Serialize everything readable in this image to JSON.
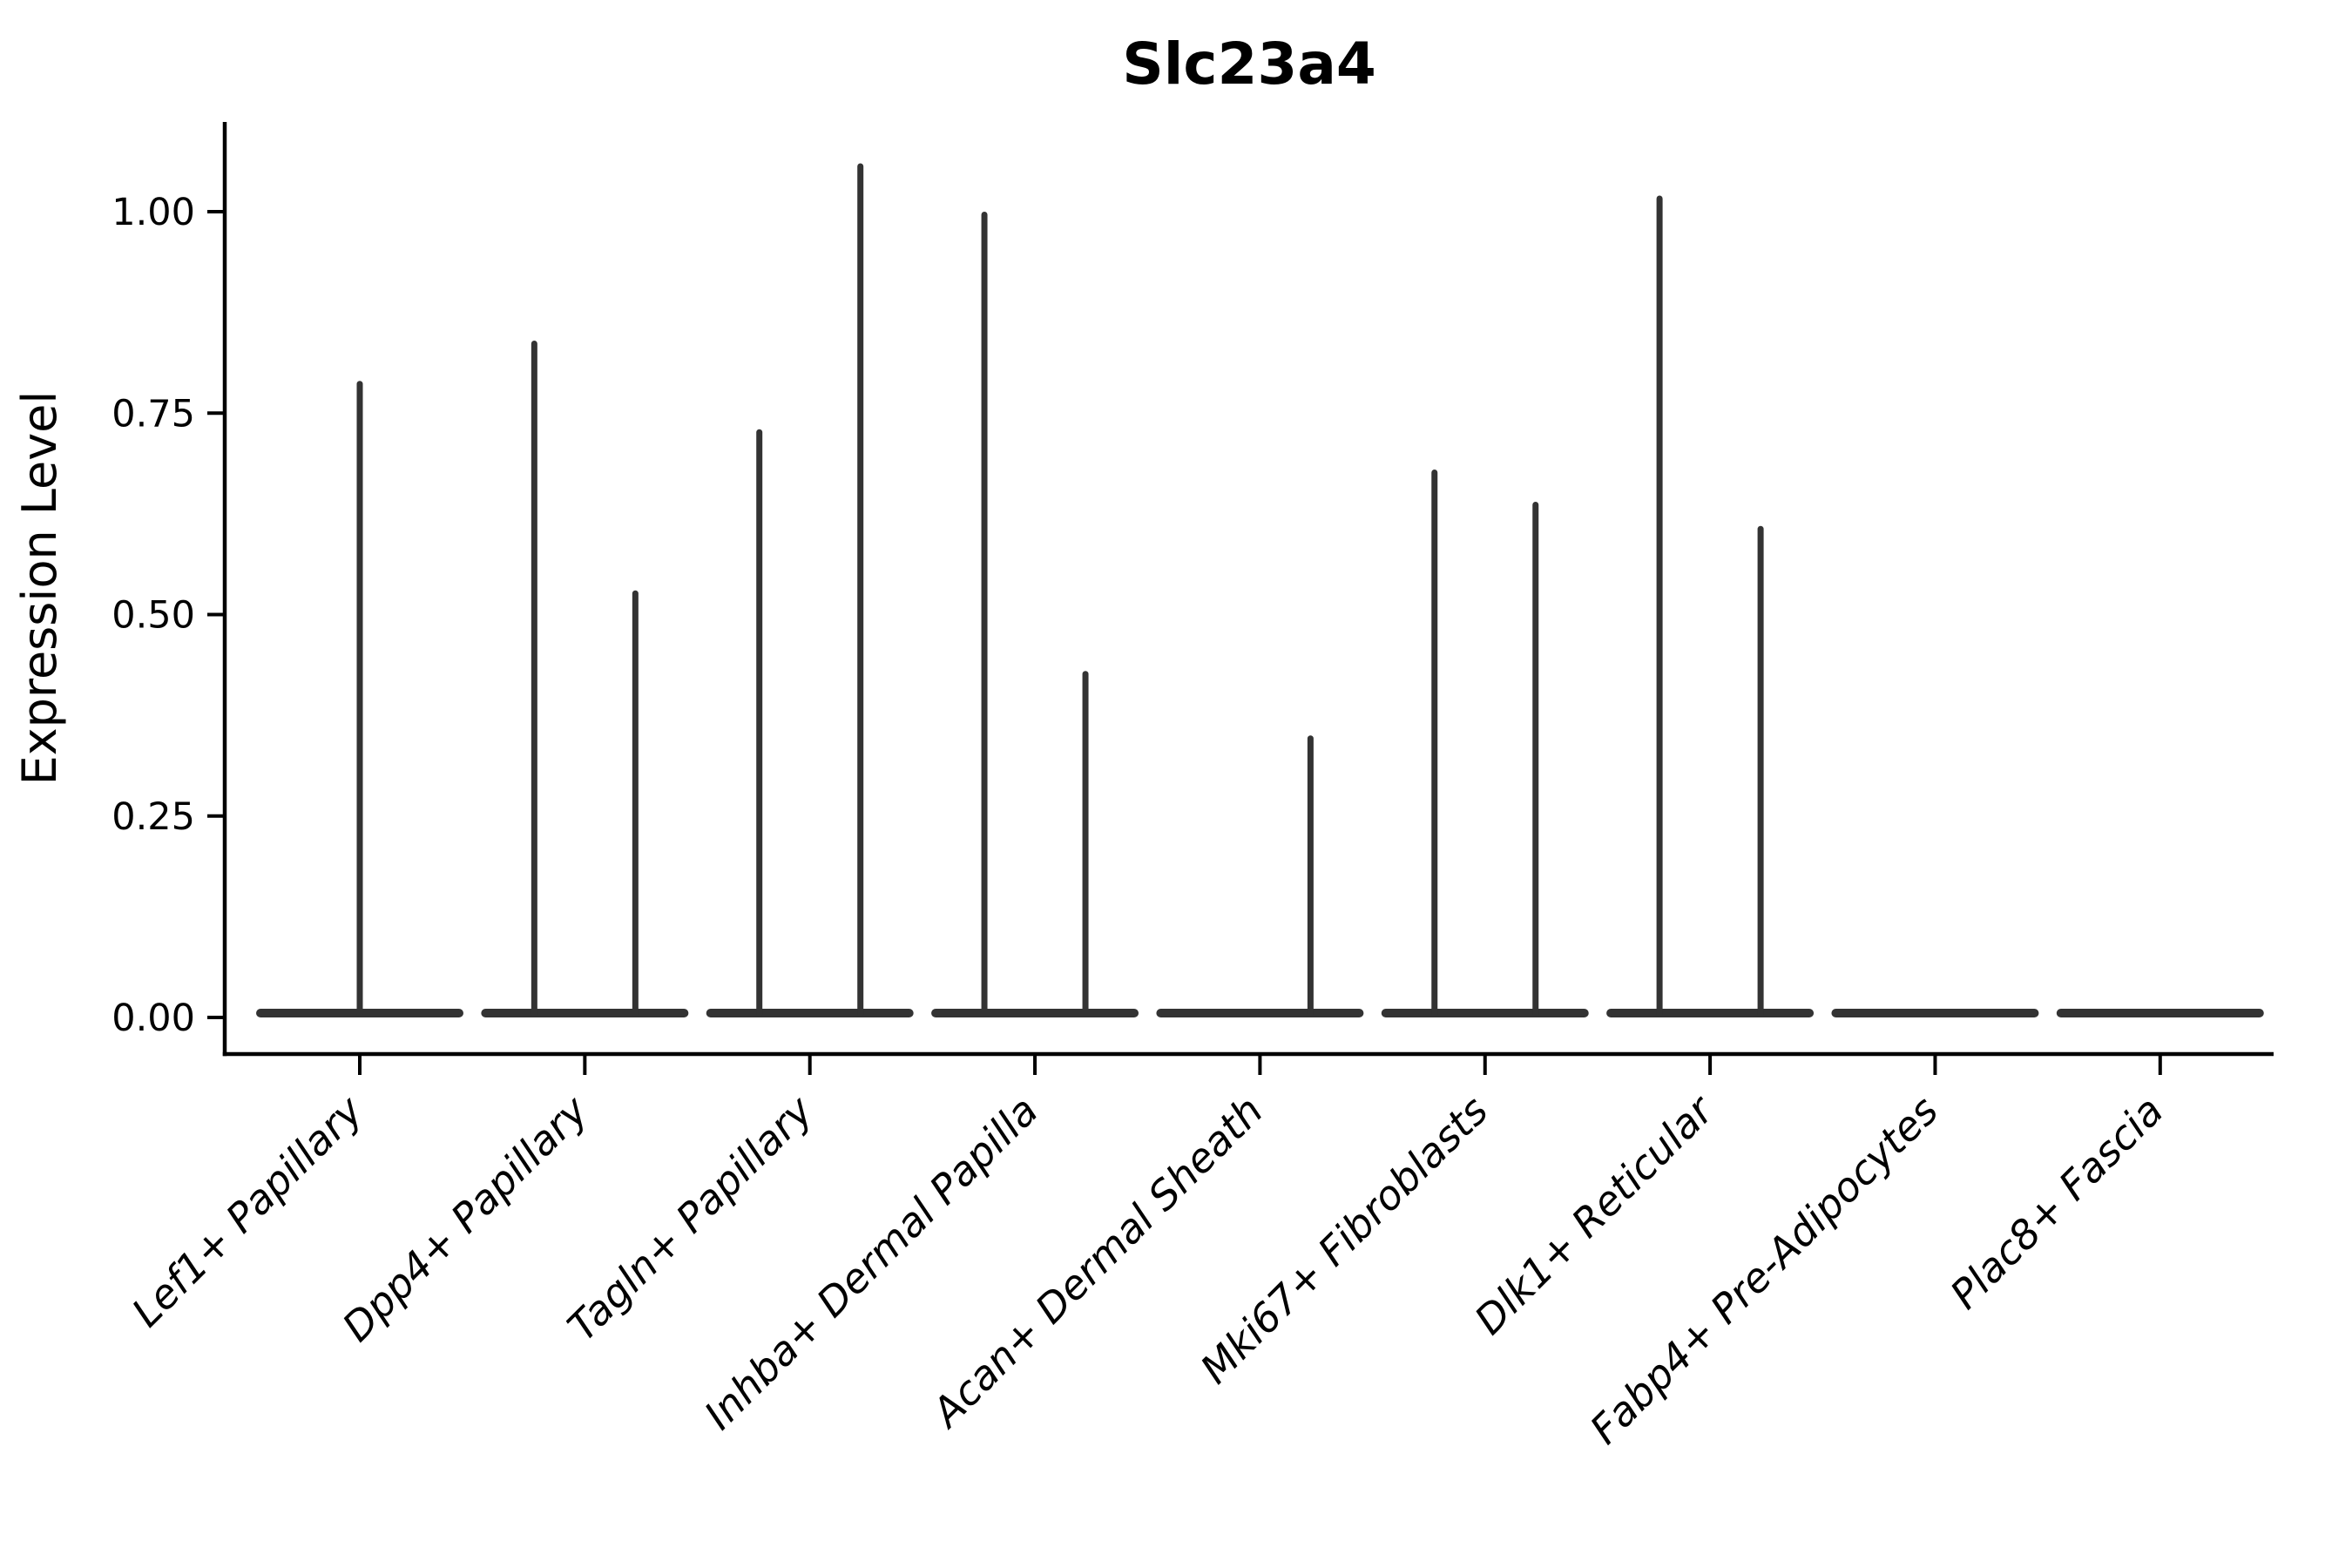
{
  "title": "Slc23a4",
  "axes": {
    "y": {
      "label": "Expression Level",
      "ticks": [
        {
          "value": 1.0,
          "label": "1.00"
        },
        {
          "value": 0.75,
          "label": "0.75"
        },
        {
          "value": 0.5,
          "label": "0.50"
        },
        {
          "value": 0.25,
          "label": "0.25"
        },
        {
          "value": 0.0,
          "label": "0.00"
        }
      ]
    },
    "x": {
      "categories": [
        "Lef1+ Papillary",
        "Dpp4+ Papillary",
        "Tagln+ Papillary",
        "Inhba+ Dermal Papilla",
        "Acan+ Dermal Sheath",
        "Mki67+ Fibroblasts",
        "Dlk1+ Reticular",
        "Fabp4+ Pre-Adipocytes",
        "Plac8+ Fascia"
      ]
    }
  },
  "chart_data": {
    "type": "violin",
    "title": "Slc23a4",
    "xlabel": "",
    "ylabel": "Expression Level",
    "ylim": [
      -0.05,
      1.11
    ],
    "yticks": [
      0.0,
      0.25,
      0.5,
      0.75,
      1.0
    ],
    "grid": false,
    "legend": null,
    "categories": [
      "Lef1+ Papillary",
      "Dpp4+ Papillary",
      "Tagln+ Papillary",
      "Inhba+ Dermal Papilla",
      "Acan+ Dermal Sheath",
      "Mki67+ Fibroblasts",
      "Dlk1+ Reticular",
      "Fabp4+ Pre-Adipocytes",
      "Plac8+ Fascia"
    ],
    "violins": [
      {
        "category": "Lef1+ Papillary",
        "zero_base": true,
        "spikes": [
          {
            "position": "center",
            "max_value": 0.79
          }
        ]
      },
      {
        "category": "Dpp4+ Papillary",
        "zero_base": true,
        "spikes": [
          {
            "position": "left",
            "max_value": 0.84
          },
          {
            "position": "right",
            "max_value": 0.53
          }
        ]
      },
      {
        "category": "Tagln+ Papillary",
        "zero_base": true,
        "spikes": [
          {
            "position": "left",
            "max_value": 0.73
          },
          {
            "position": "right",
            "max_value": 1.06
          }
        ]
      },
      {
        "category": "Inhba+ Dermal Papilla",
        "zero_base": true,
        "spikes": [
          {
            "position": "left",
            "max_value": 1.0
          },
          {
            "position": "right",
            "max_value": 0.43
          }
        ]
      },
      {
        "category": "Acan+ Dermal Sheath",
        "zero_base": true,
        "spikes": [
          {
            "position": "right",
            "max_value": 0.35
          }
        ]
      },
      {
        "category": "Mki67+ Fibroblasts",
        "zero_base": true,
        "spikes": [
          {
            "position": "left",
            "max_value": 0.68
          },
          {
            "position": "right",
            "max_value": 0.64
          }
        ]
      },
      {
        "category": "Dlk1+ Reticular",
        "zero_base": true,
        "spikes": [
          {
            "position": "left",
            "max_value": 1.02
          },
          {
            "position": "right",
            "max_value": 0.61
          }
        ]
      },
      {
        "category": "Fabp4+ Pre-Adipocytes",
        "zero_base": true,
        "spikes": []
      },
      {
        "category": "Plac8+ Fascia",
        "zero_base": true,
        "spikes": []
      }
    ],
    "colors": {
      "violin_stroke": "#333333",
      "axis": "#000000",
      "text": "#000000",
      "background": "#ffffff"
    }
  }
}
